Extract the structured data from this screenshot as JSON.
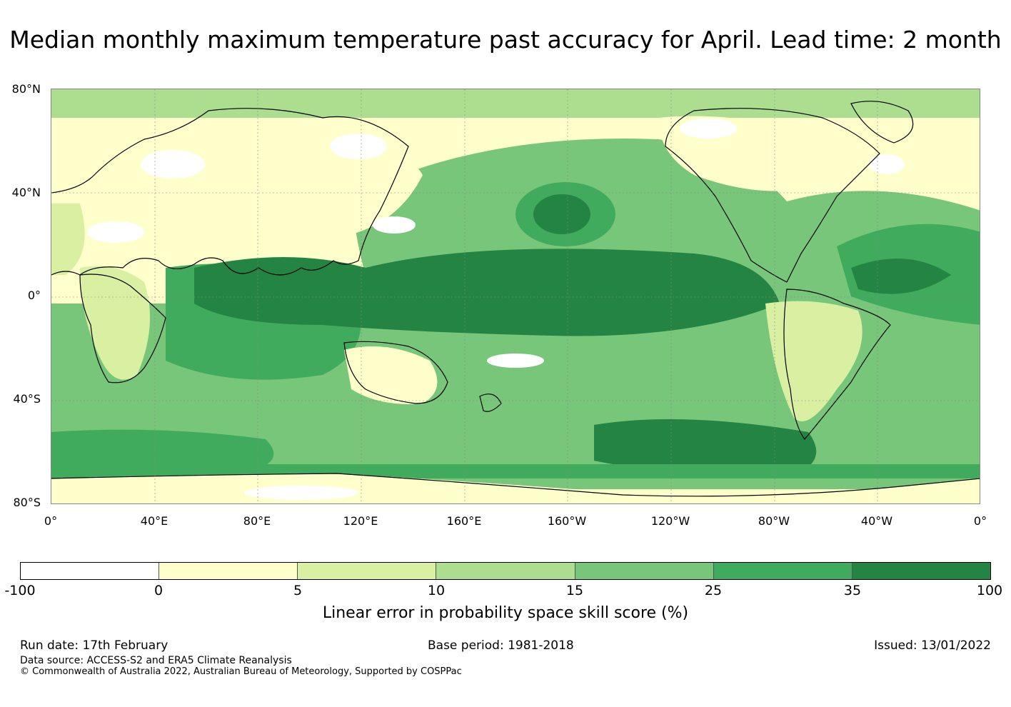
{
  "title": "Median monthly maximum temperature past accuracy for April. Lead time: 2 month",
  "map": {
    "lat_labels": [
      "80°N",
      "40°N",
      "0°",
      "40°S",
      "80°S"
    ],
    "lon_labels": [
      "0°",
      "40°E",
      "80°E",
      "120°E",
      "160°E",
      "160°W",
      "120°W",
      "80°W",
      "40°W",
      "0°"
    ]
  },
  "colorbar": {
    "colors": [
      "#ffffff",
      "#ffffcc",
      "#d9f0a3",
      "#addd8e",
      "#78c679",
      "#41ab5d",
      "#238443"
    ],
    "ticks": [
      "-100",
      "0",
      "5",
      "10",
      "15",
      "25",
      "35",
      "100"
    ],
    "label": "Linear error in probability space skill score (%)"
  },
  "footer": {
    "run_date": "Run date: 17th February",
    "base_period": "Base period: 1981-2018",
    "issued": "Issued: 13/01/2022",
    "data_source": "Data source: ACCESS-S2 and ERA5 Climate Reanalysis",
    "copyright": "© Commonwealth of Australia 2022, Australian Bureau of Meteorology, Supported by COSPPac"
  }
}
